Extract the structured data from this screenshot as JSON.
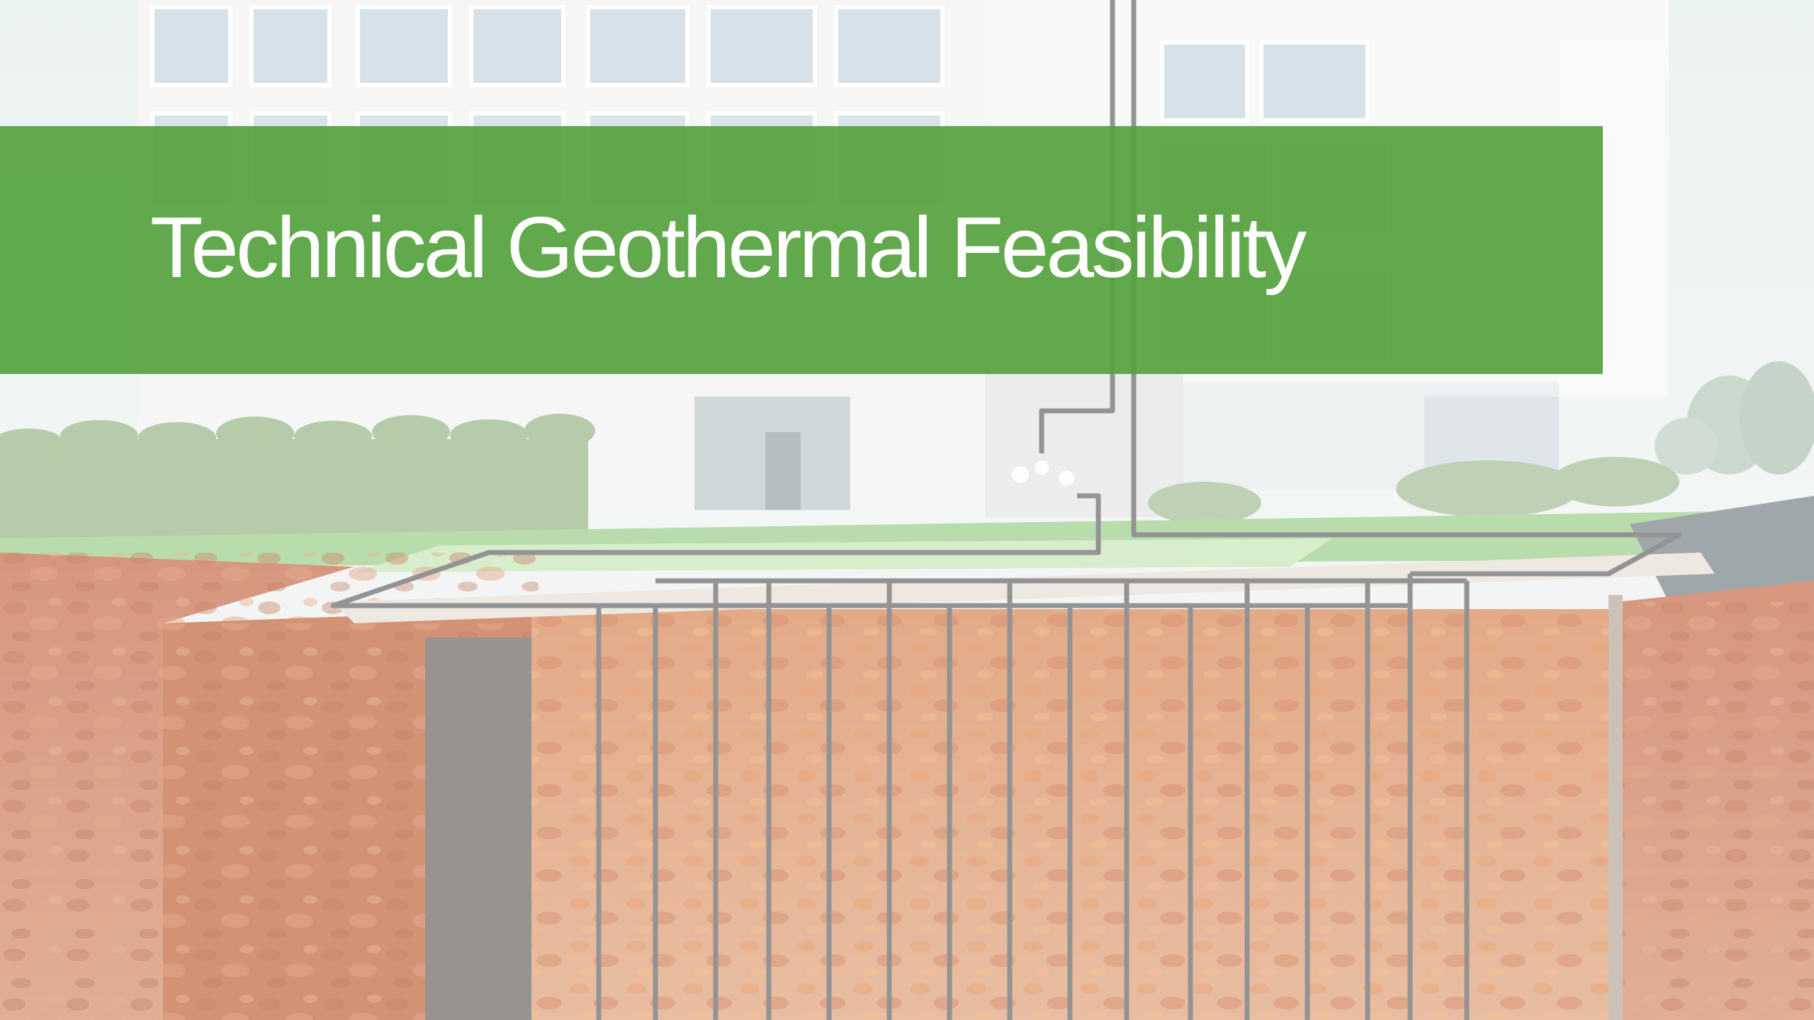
{
  "slide": {
    "title": "Technical Geothermal Feasibility"
  },
  "colors": {
    "banner": "#5aa844",
    "title_text": "#ffffff",
    "soil": "#c8704a",
    "grass": "#8fc07c",
    "hedge": "#9ab88a",
    "building": "#f1f3f2",
    "window": "#c7d6e2",
    "pipe": "#6a6a6a",
    "sky": "#e6efee"
  },
  "background_image": {
    "subject": "geothermal-ground-loop-illustration"
  }
}
